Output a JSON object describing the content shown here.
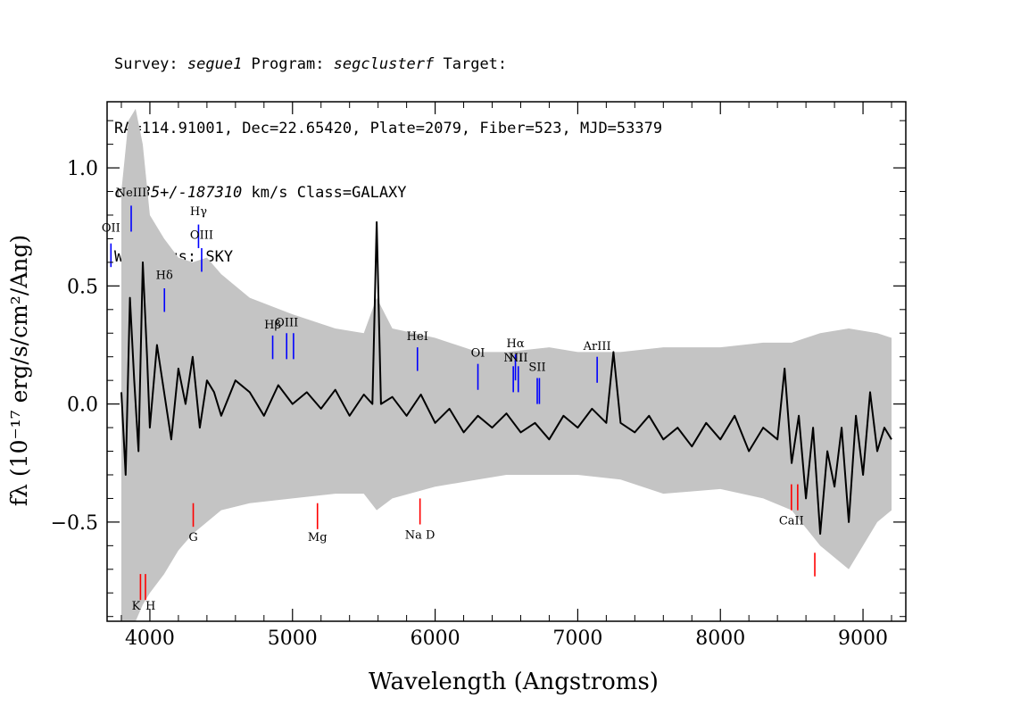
{
  "header": {
    "l1_a": "Survey: ",
    "survey": "segue1",
    "l1_b": " Program: ",
    "program": "segclusterf",
    "l1_c": " Target:",
    "l2": "RA=114.91001, Dec=22.65420, Plate=2079, Fiber=523, MJD=53379",
    "cz": "cz=35+/-187310",
    "l3_b": " km/s Class=GALAXY",
    "l4": "Warnings: SKY"
  },
  "chart_data": {
    "type": "line",
    "title": "",
    "xlabel": "Wavelength (Angstroms)",
    "ylabel": "fλ (10⁻¹⁷ erg/s/cm²/Ang)",
    "xlim": [
      3700,
      9300
    ],
    "ylim": [
      -0.92,
      1.28
    ],
    "x_ticks": [
      4000,
      5000,
      6000,
      7000,
      8000,
      9000
    ],
    "x_tick_labels": [
      "4000",
      "5000",
      "6000",
      "7000",
      "8000",
      "9000"
    ],
    "y_ticks": [
      -0.5,
      0.0,
      0.5,
      1.0
    ],
    "y_tick_labels": [
      "−0.5",
      "0.0",
      "0.5",
      "1.0"
    ],
    "grid": false,
    "series": [
      {
        "role": "error-envelope",
        "color": "#c4c4c4",
        "x": [
          3800,
          3850,
          3900,
          3950,
          4000,
          4100,
          4200,
          4300,
          4400,
          4500,
          4700,
          5000,
          5300,
          5500,
          5590,
          5700,
          6000,
          6300,
          6500,
          6800,
          7000,
          7300,
          7600,
          8000,
          8300,
          8500,
          8700,
          8900,
          9100,
          9200
        ],
        "y_upper": [
          0.9,
          1.2,
          1.25,
          1.1,
          0.8,
          0.7,
          0.62,
          0.6,
          0.62,
          0.55,
          0.45,
          0.38,
          0.32,
          0.3,
          0.45,
          0.32,
          0.28,
          0.22,
          0.22,
          0.24,
          0.22,
          0.22,
          0.24,
          0.24,
          0.26,
          0.26,
          0.3,
          0.32,
          0.3,
          0.28
        ],
        "y_lower": [
          -0.92,
          -0.92,
          -0.92,
          -0.85,
          -0.8,
          -0.72,
          -0.62,
          -0.55,
          -0.5,
          -0.45,
          -0.42,
          -0.4,
          -0.38,
          -0.38,
          -0.45,
          -0.4,
          -0.35,
          -0.32,
          -0.3,
          -0.3,
          -0.3,
          -0.32,
          -0.38,
          -0.36,
          -0.4,
          -0.45,
          -0.6,
          -0.7,
          -0.5,
          -0.45
        ]
      },
      {
        "role": "flux",
        "color": "#000000",
        "x": [
          3800,
          3830,
          3860,
          3890,
          3920,
          3950,
          3980,
          4000,
          4050,
          4100,
          4150,
          4200,
          4250,
          4300,
          4350,
          4400,
          4450,
          4500,
          4600,
          4700,
          4800,
          4900,
          5000,
          5100,
          5200,
          5300,
          5400,
          5500,
          5560,
          5590,
          5620,
          5700,
          5800,
          5900,
          6000,
          6100,
          6200,
          6300,
          6400,
          6500,
          6600,
          6700,
          6800,
          6900,
          7000,
          7100,
          7200,
          7250,
          7300,
          7400,
          7500,
          7600,
          7700,
          7800,
          7900,
          8000,
          8100,
          8200,
          8300,
          8400,
          8450,
          8500,
          8550,
          8600,
          8650,
          8700,
          8750,
          8800,
          8850,
          8900,
          8950,
          9000,
          9050,
          9100,
          9150,
          9200
        ],
        "y": [
          0.05,
          -0.3,
          0.45,
          0.1,
          -0.2,
          0.6,
          0.2,
          -0.1,
          0.25,
          0.05,
          -0.15,
          0.15,
          0.0,
          0.2,
          -0.1,
          0.1,
          0.05,
          -0.05,
          0.1,
          0.05,
          -0.05,
          0.08,
          0.0,
          0.05,
          -0.02,
          0.06,
          -0.05,
          0.04,
          0.0,
          0.77,
          0.0,
          0.03,
          -0.05,
          0.04,
          -0.08,
          -0.02,
          -0.12,
          -0.05,
          -0.1,
          -0.04,
          -0.12,
          -0.08,
          -0.15,
          -0.05,
          -0.1,
          -0.02,
          -0.08,
          0.22,
          -0.08,
          -0.12,
          -0.05,
          -0.15,
          -0.1,
          -0.18,
          -0.08,
          -0.15,
          -0.05,
          -0.2,
          -0.1,
          -0.15,
          0.15,
          -0.25,
          -0.05,
          -0.4,
          -0.1,
          -0.55,
          -0.2,
          -0.35,
          -0.1,
          -0.5,
          -0.05,
          -0.3,
          0.05,
          -0.2,
          -0.1,
          -0.15
        ]
      }
    ],
    "emission_lines": [
      {
        "label": "OII",
        "x": 3727,
        "y0": 0.58,
        "y1": 0.68,
        "color": "#0000ff",
        "label_y": 0.73
      },
      {
        "label": "NeIII",
        "x": 3869,
        "y0": 0.73,
        "y1": 0.84,
        "color": "#0000ff",
        "label_y": 0.88
      },
      {
        "label": "Hδ",
        "x": 4102,
        "y0": 0.39,
        "y1": 0.49,
        "color": "#0000ff",
        "label_y": 0.53
      },
      {
        "label": "Hγ",
        "x": 4341,
        "y0": 0.66,
        "y1": 0.76,
        "color": "#0000ff",
        "label_y": 0.8
      },
      {
        "label": "OIII",
        "x": 4363,
        "y0": 0.56,
        "y1": 0.66,
        "color": "#0000ff",
        "label_y": 0.7
      },
      {
        "label": "Hβ",
        "x": 4861,
        "y0": 0.19,
        "y1": 0.29,
        "color": "#0000ff",
        "label_y": 0.32
      },
      {
        "label": "OIII",
        "x": 4959,
        "y0": 0.19,
        "y1": 0.3,
        "color": "#0000ff",
        "label_y": 0.33
      },
      {
        "label": "",
        "x": 5007,
        "y0": 0.19,
        "y1": 0.3,
        "color": "#0000ff",
        "label_y": 0.33
      },
      {
        "label": "HeI",
        "x": 5876,
        "y0": 0.14,
        "y1": 0.24,
        "color": "#0000ff",
        "label_y": 0.27
      },
      {
        "label": "OI",
        "x": 6300,
        "y0": 0.06,
        "y1": 0.17,
        "color": "#0000ff",
        "label_y": 0.2
      },
      {
        "label": "NII",
        "x": 6548,
        "y0": 0.05,
        "y1": 0.16,
        "color": "#0000ff",
        "label_y": 0.18
      },
      {
        "label": "Hα",
        "x": 6563,
        "y0": 0.1,
        "y1": 0.21,
        "color": "#0000ff",
        "label_y": 0.24
      },
      {
        "label": "NII",
        "x": 6583,
        "y0": 0.05,
        "y1": 0.16,
        "color": "#0000ff",
        "label_y": 0.18
      },
      {
        "label": "SII",
        "x": 6716,
        "y0": 0.0,
        "y1": 0.11,
        "color": "#0000ff",
        "label_y": 0.14
      },
      {
        "label": "",
        "x": 6731,
        "y0": 0.0,
        "y1": 0.11,
        "color": "#0000ff",
        "label_y": 0.14
      },
      {
        "label": "ArIII",
        "x": 7136,
        "y0": 0.09,
        "y1": 0.2,
        "color": "#0000ff",
        "label_y": 0.23
      }
    ],
    "absorption_lines": [
      {
        "label": "K",
        "x": 3934,
        "y0": -0.72,
        "y1": -0.83,
        "color": "#ff0000",
        "label_y": -0.87,
        "anchor": "end"
      },
      {
        "label": "H",
        "x": 3969,
        "y0": -0.72,
        "y1": -0.83,
        "color": "#ff0000",
        "label_y": -0.87,
        "anchor": "start"
      },
      {
        "label": "G",
        "x": 4304,
        "y0": -0.42,
        "y1": -0.52,
        "color": "#ff0000",
        "label_y": -0.58,
        "anchor": "middle"
      },
      {
        "label": "Mg",
        "x": 5175,
        "y0": -0.42,
        "y1": -0.53,
        "color": "#ff0000",
        "label_y": -0.58,
        "anchor": "middle"
      },
      {
        "label": "Na D",
        "x": 5894,
        "y0": -0.4,
        "y1": -0.51,
        "color": "#ff0000",
        "label_y": -0.57,
        "anchor": "middle"
      },
      {
        "label": "CaII",
        "x": 8498,
        "y0": -0.34,
        "y1": -0.45,
        "color": "#ff0000",
        "label_y": -0.51,
        "anchor": "middle"
      },
      {
        "label": "",
        "x": 8542,
        "y0": -0.34,
        "y1": -0.45,
        "color": "#ff0000",
        "label_y": -0.51,
        "anchor": "middle"
      },
      {
        "label": "",
        "x": 8662,
        "y0": -0.63,
        "y1": -0.73,
        "color": "#ff0000",
        "label_y": -0.78,
        "anchor": "middle"
      }
    ]
  }
}
